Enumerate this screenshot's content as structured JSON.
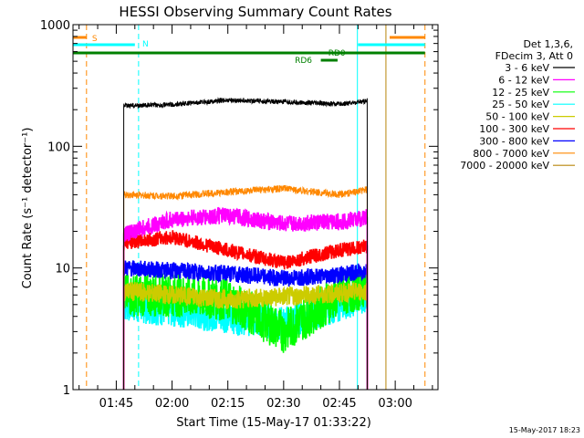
{
  "chart_data": {
    "type": "line",
    "title": "HESSI Observing Summary Count Rates",
    "xlabel": "Start Time (15-May-17 01:33:22)",
    "ylabel": "Count Rate (s⁻¹ detector⁻¹)",
    "yscale": "log",
    "ylim": [
      1,
      1000
    ],
    "xlim": [
      "01:33:22",
      "03:11:30"
    ],
    "y_ticks": [
      "1",
      "10",
      "100",
      "1000"
    ],
    "x_ticks": [
      "01:45",
      "02:00",
      "02:15",
      "02:30",
      "02:45",
      "03:00"
    ],
    "grid": false,
    "legend_position": "right",
    "legend_header": [
      "Det 1,3,6,",
      "FDecim 3, Att 0"
    ],
    "timestamp": "15-May-2017 18:23",
    "series": [
      {
        "name": "3 - 6 keV",
        "color": "#000000",
        "x": [
          "01:47:00",
          "02:00",
          "02:15",
          "02:30",
          "02:45",
          "02:52:30"
        ],
        "values": [
          215,
          220,
          240,
          232,
          222,
          235
        ]
      },
      {
        "name": "6 - 12 keV",
        "color": "#ff00ff",
        "x": [
          "01:47:00",
          "02:00",
          "02:15",
          "02:30",
          "02:45",
          "02:52:30"
        ],
        "values": [
          19,
          25,
          27,
          23,
          24,
          26
        ]
      },
      {
        "name": "12 - 25 keV",
        "color": "#00ff00",
        "x": [
          "01:47:00",
          "02:00",
          "02:15",
          "02:30",
          "02:45",
          "02:52:30"
        ],
        "values": [
          6,
          6,
          5.5,
          3,
          6,
          7
        ]
      },
      {
        "name": "25 - 50 keV",
        "color": "#00ffff",
        "x": [
          "01:47:00",
          "02:00",
          "02:15",
          "02:30",
          "02:45",
          "02:52:30"
        ],
        "values": [
          5,
          4.5,
          4,
          3.5,
          5,
          6
        ]
      },
      {
        "name": "50 - 100 keV",
        "color": "#cccc00",
        "x": [
          "01:47:00",
          "02:00",
          "02:15",
          "02:30",
          "02:45",
          "02:52:30"
        ],
        "values": [
          6.5,
          6,
          5.5,
          5.8,
          6.2,
          6.5
        ]
      },
      {
        "name": "100 - 300 keV",
        "color": "#ff0000",
        "x": [
          "01:47:00",
          "02:00",
          "02:15",
          "02:30",
          "02:45",
          "02:52:30"
        ],
        "values": [
          16,
          18,
          14,
          11,
          14,
          15
        ]
      },
      {
        "name": "300 - 800 keV",
        "color": "#0000ff",
        "x": [
          "01:47:00",
          "02:00",
          "02:15",
          "02:30",
          "02:45",
          "02:52:30"
        ],
        "values": [
          10,
          9.5,
          9,
          8.2,
          8.8,
          9.5
        ]
      },
      {
        "name": "800 - 7000 keV",
        "color": "#ff8800",
        "x": [
          "01:47:00",
          "02:00",
          "02:15",
          "02:30",
          "02:45",
          "02:52:30"
        ],
        "values": [
          40,
          39,
          42,
          45,
          40,
          44
        ]
      },
      {
        "name": "7000 - 20000 keV",
        "color": "#b8860b",
        "x": [],
        "values": []
      }
    ],
    "flag_bars": [
      {
        "label": "S",
        "color": "#ff8800",
        "segments": [
          [
            "01:33:22",
            "01:37:00"
          ],
          [
            "02:58:30",
            "03:08:00"
          ]
        ]
      },
      {
        "label": "N",
        "color": "#00ffff",
        "segments": [
          [
            "01:33:22",
            "01:50:00"
          ],
          [
            "02:50:00",
            "03:08:00"
          ]
        ]
      },
      {
        "label": "RD0",
        "color": "#008000",
        "segments": [
          [
            "01:33:22",
            "03:08:00"
          ]
        ]
      },
      {
        "label": "RD6",
        "color": "#008000",
        "segments": [
          [
            "02:40:00",
            "02:44:30"
          ]
        ]
      }
    ],
    "vertical_markers": [
      {
        "x": "01:33:22",
        "color": "#00ffff",
        "style": "solid"
      },
      {
        "x": "01:37:00",
        "color": "#ff8800",
        "style": "dashed"
      },
      {
        "x": "01:51:00",
        "color": "#00ffff",
        "style": "dashed"
      },
      {
        "x": "02:49:50",
        "color": "#00ffff",
        "style": "solid"
      },
      {
        "x": "02:57:30",
        "color": "#b8860b",
        "style": "solid"
      },
      {
        "x": "03:08:00",
        "color": "#ff8800",
        "style": "dashed"
      }
    ]
  }
}
